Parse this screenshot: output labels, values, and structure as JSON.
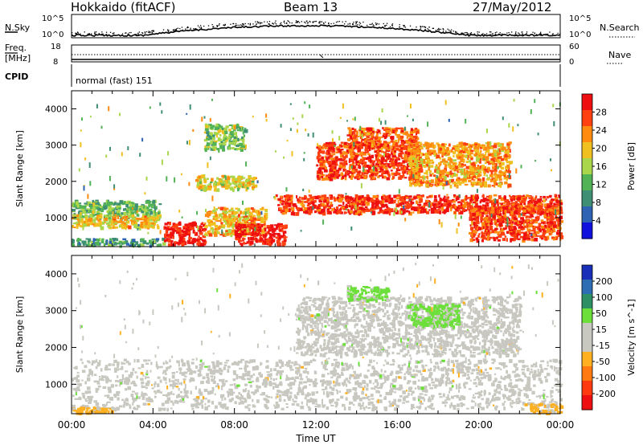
{
  "header": {
    "station": "Hokkaido (fitACF)",
    "beam": "Beam 13",
    "date": "27/May/2012"
  },
  "noise_panel": {
    "left_label": "N.Sky",
    "left_ticks": [
      "10^5",
      "10^0"
    ],
    "right_label": "N.Search",
    "right_ticks": [
      "10^5",
      "10^0"
    ]
  },
  "freq_panel": {
    "left_label": "Freq.",
    "left_unit": "[MHz]",
    "left_ticks": [
      "18",
      "8"
    ],
    "right_label": "Nave",
    "right_ticks": [
      "60",
      "0"
    ]
  },
  "cpid": {
    "label": "CPID",
    "value": "normal (fast) 151"
  },
  "colors": {
    "power_scale": [
      "#1111dd",
      "#2e63b4",
      "#3f8f74",
      "#52b256",
      "#a9d64a",
      "#f0c020",
      "#ff8c10",
      "#ff4010",
      "#ee1010"
    ],
    "velocity_scale": [
      "#1a2fb8",
      "#2e6db4",
      "#2f8f64",
      "#6ddf3b",
      "#c8c8c0",
      "#c8c8c0",
      "#ffb020",
      "#ff7a10",
      "#ff3a10",
      "#ee1010"
    ]
  },
  "chart_data": [
    {
      "type": "heatmap",
      "panel": "power",
      "ylabel": "Slant Range [km]",
      "yticks": [
        1000,
        2000,
        3000,
        4000
      ],
      "ylim": [
        200,
        4500
      ],
      "xlim": [
        0,
        24
      ],
      "colorbar": {
        "label": "Power [dB]",
        "tick_labels": [
          "28",
          "24",
          "20",
          "16",
          "12",
          "8",
          "4"
        ],
        "range": [
          0,
          32
        ]
      },
      "features": [
        {
          "hours": [
            0,
            4.3
          ],
          "range_km": [
            1000,
            1500
          ],
          "value": 13
        },
        {
          "hours": [
            0,
            4.3
          ],
          "range_km": [
            750,
            1100
          ],
          "value": 20
        },
        {
          "hours": [
            0,
            4.5
          ],
          "range_km": [
            250,
            450
          ],
          "value": 10
        },
        {
          "hours": [
            4.5,
            6.5
          ],
          "range_km": [
            280,
            900
          ],
          "value": 30
        },
        {
          "hours": [
            6.5,
            9.5
          ],
          "range_km": [
            550,
            1300
          ],
          "value": 21
        },
        {
          "hours": [
            8,
            10.5
          ],
          "range_km": [
            300,
            850
          ],
          "value": 30
        },
        {
          "hours": [
            10,
            24
          ],
          "range_km": [
            1150,
            1650
          ],
          "value": 28
        },
        {
          "hours": [
            12,
            17
          ],
          "range_km": [
            2100,
            3100
          ],
          "value": 27
        },
        {
          "hours": [
            13.5,
            17
          ],
          "range_km": [
            2950,
            3500
          ],
          "value": 26
        },
        {
          "hours": [
            16.5,
            21.5
          ],
          "range_km": [
            1900,
            3100
          ],
          "value": 22
        },
        {
          "hours": [
            19.5,
            24
          ],
          "range_km": [
            400,
            1350
          ],
          "value": 27
        },
        {
          "hours": [
            6,
            9
          ],
          "range_km": [
            1800,
            2200
          ],
          "value": 18
        },
        {
          "hours": [
            6.5,
            8.5
          ],
          "range_km": [
            2900,
            3600
          ],
          "value": 14
        }
      ]
    },
    {
      "type": "heatmap",
      "panel": "velocity",
      "xlabel": "Time UT",
      "xticks": [
        "00:00",
        "04:00",
        "08:00",
        "12:00",
        "16:00",
        "20:00",
        "00:00"
      ],
      "ylabel": "Slant Range [km]",
      "yticks": [
        1000,
        2000,
        3000,
        4000
      ],
      "ylim": [
        200,
        4500
      ],
      "xlim": [
        0,
        24
      ],
      "colorbar": {
        "label": "Velocity [m s^-1]",
        "tick_labels": [
          "200",
          "100",
          "50",
          "15",
          "-15",
          "-50",
          "-100",
          "-200"
        ],
        "range": [
          -250,
          250
        ]
      },
      "features": [
        {
          "hours": [
            0,
            24
          ],
          "range_km": [
            350,
            1700
          ],
          "value": 0
        },
        {
          "hours": [
            11,
            22
          ],
          "range_km": [
            1800,
            3400
          ],
          "value": 0
        },
        {
          "hours": [
            16.5,
            19
          ],
          "range_km": [
            2600,
            3200
          ],
          "value": 60
        },
        {
          "hours": [
            13.5,
            15.5
          ],
          "range_km": [
            3300,
            3700
          ],
          "value": 60
        },
        {
          "hours": [
            0,
            2
          ],
          "range_km": [
            250,
            400
          ],
          "value": -60
        },
        {
          "hours": [
            22.5,
            24
          ],
          "range_km": [
            250,
            500
          ],
          "value": -60
        }
      ]
    }
  ]
}
